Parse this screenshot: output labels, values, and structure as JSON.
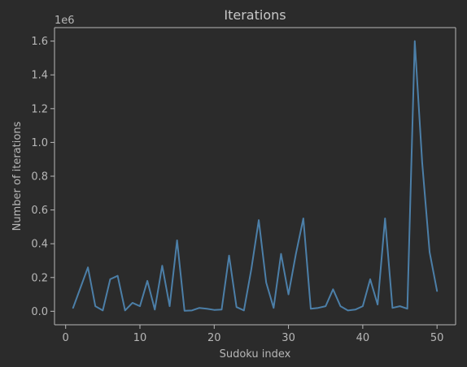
{
  "chart_data": {
    "type": "line",
    "title": "Iterations",
    "xlabel": "Sudoku index",
    "ylabel": "Number of iterations",
    "y_offset_label": "1e6",
    "xlim": [
      -1.5,
      52.5
    ],
    "ylim": [
      -0.08,
      1.68
    ],
    "x_ticks": [
      0,
      10,
      20,
      30,
      40,
      50
    ],
    "x_tick_labels": [
      "0",
      "10",
      "20",
      "30",
      "40",
      "50"
    ],
    "y_ticks": [
      0.0,
      0.2,
      0.4,
      0.6,
      0.8,
      1.0,
      1.2,
      1.4,
      1.6
    ],
    "y_tick_labels": [
      "0.0",
      "0.2",
      "0.4",
      "0.6",
      "0.8",
      "1.0",
      "1.2",
      "1.4",
      "1.6"
    ],
    "grid": false,
    "colors": {
      "background": "#2b2b2b",
      "axes": "#2b2b2b",
      "spine": "#b7b7b7",
      "text": "#b7b7b7",
      "title": "#c8c8c8",
      "line": "#4c7fa8"
    },
    "series": [
      {
        "x": [
          1,
          2,
          3,
          4,
          5,
          6,
          7,
          8,
          9,
          10,
          11,
          12,
          13,
          14,
          15,
          16,
          17,
          18,
          19,
          20,
          21,
          22,
          23,
          24,
          25,
          26,
          27,
          28,
          29,
          30,
          31,
          32,
          33,
          34,
          35,
          36,
          37,
          38,
          39,
          40,
          41,
          42,
          43,
          44,
          45,
          46,
          47,
          48,
          49,
          50
        ],
        "values": [
          0.02,
          0.14,
          0.26,
          0.03,
          0.005,
          0.19,
          0.21,
          0.005,
          0.05,
          0.03,
          0.18,
          0.01,
          0.27,
          0.03,
          0.42,
          0.003,
          0.005,
          0.02,
          0.015,
          0.008,
          0.01,
          0.33,
          0.025,
          0.005,
          0.25,
          0.54,
          0.17,
          0.02,
          0.34,
          0.1,
          0.34,
          0.55,
          0.015,
          0.02,
          0.03,
          0.13,
          0.03,
          0.005,
          0.01,
          0.03,
          0.19,
          0.04,
          0.55,
          0.02,
          0.03,
          0.015,
          1.6,
          0.88,
          0.35,
          0.12
        ]
      }
    ]
  }
}
